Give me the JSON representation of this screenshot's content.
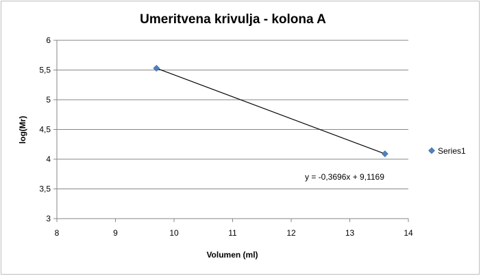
{
  "chart_data": {
    "type": "scatter",
    "title": "Umeritvena krivulja - kolona A",
    "xlabel": "Volumen (ml)",
    "ylabel": "log(Mr)",
    "xlim": [
      8,
      14
    ],
    "ylim": [
      3,
      6
    ],
    "x_ticks": [
      "8",
      "9",
      "10",
      "11",
      "12",
      "13",
      "14"
    ],
    "y_ticks": [
      "3",
      "3,5",
      "4",
      "4,5",
      "5",
      "5,5",
      "6"
    ],
    "grid": "horizontal",
    "legend_position": "right",
    "series": [
      {
        "name": "Series1",
        "color": "#4f81bd",
        "marker": "diamond",
        "points": [
          {
            "x": 9.7,
            "y": 5.53
          },
          {
            "x": 13.6,
            "y": 4.09
          }
        ]
      }
    ],
    "trendline": {
      "type": "linear",
      "color": "#000000",
      "equation": "y = -0,3696x + 9,1169"
    }
  }
}
